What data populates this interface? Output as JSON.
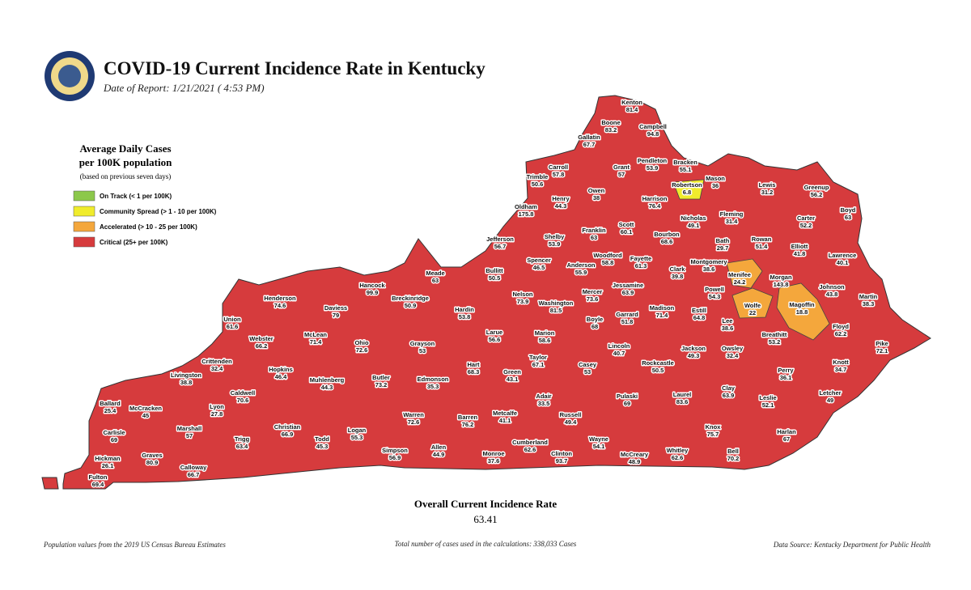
{
  "header": {
    "title": "COVID-19 Current Incidence Rate in Kentucky",
    "date": "Date of Report: 1/21/2021 ( 4:53 PM)"
  },
  "legend": {
    "title_lines": [
      "Average Daily Cases",
      "per 100K population"
    ],
    "note": "(based on previous seven days)",
    "items": [
      {
        "label": "On Track (< 1 per 100K)",
        "color": "#8cc84b"
      },
      {
        "label": "Community Spread (> 1 - 10 per 100K)",
        "color": "#f0ec2c"
      },
      {
        "label": "Accelerated (> 10 - 25 per 100K)",
        "color": "#f4a73c"
      },
      {
        "label": "Critical (25+ per 100K)",
        "color": "#d63b3d"
      }
    ]
  },
  "counties": [
    {
      "name": "Kenton",
      "value": 81.4
    },
    {
      "name": "Boone",
      "value": 83.2
    },
    {
      "name": "Campbell",
      "value": 94.8
    },
    {
      "name": "Gallatin",
      "value": 67.7
    },
    {
      "name": "Carroll",
      "value": 57.8
    },
    {
      "name": "Trimble",
      "value": 50.6
    },
    {
      "name": "Grant",
      "value": 57
    },
    {
      "name": "Pendleton",
      "value": 53.9
    },
    {
      "name": "Bracken",
      "value": 55.1
    },
    {
      "name": "Mason",
      "value": 36
    },
    {
      "name": "Robertson",
      "value": 6.8
    },
    {
      "name": "Owen",
      "value": 38
    },
    {
      "name": "Henry",
      "value": 44.3
    },
    {
      "name": "Oldham",
      "value": 175.8
    },
    {
      "name": "Harrison",
      "value": 76.4
    },
    {
      "name": "Lewis",
      "value": 31.2
    },
    {
      "name": "Greenup",
      "value": 56.2
    },
    {
      "name": "Boyd",
      "value": 63
    },
    {
      "name": "Carter",
      "value": 52.2
    },
    {
      "name": "Fleming",
      "value": 31.4
    },
    {
      "name": "Nicholas",
      "value": 49.1
    },
    {
      "name": "Scott",
      "value": 60.1
    },
    {
      "name": "Franklin",
      "value": 63
    },
    {
      "name": "Shelby",
      "value": 53.9
    },
    {
      "name": "Jefferson",
      "value": 56.7
    },
    {
      "name": "Bourbon",
      "value": 68.6
    },
    {
      "name": "Bath",
      "value": 29.7
    },
    {
      "name": "Rowan",
      "value": 51.4
    },
    {
      "name": "Elliott",
      "value": 41.8
    },
    {
      "name": "Lawrence",
      "value": 40.1
    },
    {
      "name": "Woodford",
      "value": 58.8
    },
    {
      "name": "Fayette",
      "value": 61.3
    },
    {
      "name": "Spencer",
      "value": 46.5
    },
    {
      "name": "Anderson",
      "value": 55.9
    },
    {
      "name": "Montgomery",
      "value": 38.6
    },
    {
      "name": "Clark",
      "value": 39.8
    },
    {
      "name": "Menifee",
      "value": 24.2
    },
    {
      "name": "Morgan",
      "value": 143.8
    },
    {
      "name": "Johnson",
      "value": 43.8
    },
    {
      "name": "Martin",
      "value": 38.3
    },
    {
      "name": "Meade",
      "value": 63
    },
    {
      "name": "Bullitt",
      "value": 50.5
    },
    {
      "name": "Jessamine",
      "value": 63.9
    },
    {
      "name": "Mercer",
      "value": 73.6
    },
    {
      "name": "Powell",
      "value": 54.3
    },
    {
      "name": "Hancock",
      "value": 99.9
    },
    {
      "name": "Breckinridge",
      "value": 50.9
    },
    {
      "name": "Henderson",
      "value": 74.6
    },
    {
      "name": "Daviess",
      "value": 79
    },
    {
      "name": "Nelson",
      "value": 73.9
    },
    {
      "name": "Washington",
      "value": 81.5
    },
    {
      "name": "Hardin",
      "value": 53.8
    },
    {
      "name": "Madison",
      "value": 71.4
    },
    {
      "name": "Estill",
      "value": 64.8
    },
    {
      "name": "Wolfe",
      "value": 22
    },
    {
      "name": "Magoffin",
      "value": 18.8
    },
    {
      "name": "Garrard",
      "value": 51.8
    },
    {
      "name": "Boyle",
      "value": 68
    },
    {
      "name": "Lee",
      "value": 38.6
    },
    {
      "name": "Floyd",
      "value": 62.2
    },
    {
      "name": "Union",
      "value": 61.6
    },
    {
      "name": "Webster",
      "value": 66.2
    },
    {
      "name": "McLean",
      "value": 71.4
    },
    {
      "name": "Ohio",
      "value": 72.6
    },
    {
      "name": "Larue",
      "value": 56.6
    },
    {
      "name": "Marion",
      "value": 58.6
    },
    {
      "name": "Breathitt",
      "value": 53.2
    },
    {
      "name": "Pike",
      "value": 72.1
    },
    {
      "name": "Grayson",
      "value": 53
    },
    {
      "name": "Lincoln",
      "value": 40.7
    },
    {
      "name": "Owsley",
      "value": 32.4
    },
    {
      "name": "Rockcastle",
      "value": 50.5
    },
    {
      "name": "Jackson",
      "value": 49.3
    },
    {
      "name": "Taylor",
      "value": 67.1
    },
    {
      "name": "Crittenden",
      "value": 32.4
    },
    {
      "name": "Hart",
      "value": 68.3
    },
    {
      "name": "Casey",
      "value": 53
    },
    {
      "name": "Knott",
      "value": 34.7
    },
    {
      "name": "Hopkins",
      "value": 46.4
    },
    {
      "name": "Green",
      "value": 43.1
    },
    {
      "name": "Perry",
      "value": 36.1
    },
    {
      "name": "Livingston",
      "value": 38.8
    },
    {
      "name": "Butler",
      "value": 73.2
    },
    {
      "name": "Edmonson",
      "value": 35.3
    },
    {
      "name": "Muhlenberg",
      "value": 44.3
    },
    {
      "name": "Clay",
      "value": 63.9
    },
    {
      "name": "Caldwell",
      "value": 70.6
    },
    {
      "name": "Letcher",
      "value": 49
    },
    {
      "name": "Adair",
      "value": 33.5
    },
    {
      "name": "Leslie",
      "value": 52.1
    },
    {
      "name": "Pulaski",
      "value": 69
    },
    {
      "name": "Laurel",
      "value": 83.6
    },
    {
      "name": "Ballard",
      "value": 25.4
    },
    {
      "name": "McCracken",
      "value": 45
    },
    {
      "name": "Lyon",
      "value": 27.8
    },
    {
      "name": "Warren",
      "value": 72.6
    },
    {
      "name": "Barren",
      "value": 76.2
    },
    {
      "name": "Metcalfe",
      "value": 41.1
    },
    {
      "name": "Russell",
      "value": 49.4
    },
    {
      "name": "Trigg",
      "value": 63.4
    },
    {
      "name": "Christian",
      "value": 66.9
    },
    {
      "name": "Marshall",
      "value": 57
    },
    {
      "name": "Carlisle",
      "value": 69
    },
    {
      "name": "Todd",
      "value": 45.3
    },
    {
      "name": "Logan",
      "value": 55.3
    },
    {
      "name": "Knox",
      "value": 75.7
    },
    {
      "name": "Harlan",
      "value": 67
    },
    {
      "name": "Wayne",
      "value": 54.1
    },
    {
      "name": "Cumberland",
      "value": 62.6
    },
    {
      "name": "Simpson",
      "value": 56.9
    },
    {
      "name": "Allen",
      "value": 44.9
    },
    {
      "name": "Monroe",
      "value": 37.6
    },
    {
      "name": "Clinton",
      "value": 93.7
    },
    {
      "name": "McCreary",
      "value": 48.9
    },
    {
      "name": "Whitley",
      "value": 62.6
    },
    {
      "name": "Bell",
      "value": 70.2
    },
    {
      "name": "Graves",
      "value": 80.9
    },
    {
      "name": "Hickman",
      "value": 26.1
    },
    {
      "name": "Calloway",
      "value": 66.7
    },
    {
      "name": "Fulton",
      "value": 69.4
    }
  ],
  "summary": {
    "label": "Overall Current Incidence Rate",
    "value": 63.41
  },
  "footer": {
    "left": "Population values from the 2019 US Census Bureau Estimates",
    "center": "Total number of cases used in the calculations: 338,033 Cases",
    "right": "Data Source: Kentucky Department for Public Health"
  }
}
